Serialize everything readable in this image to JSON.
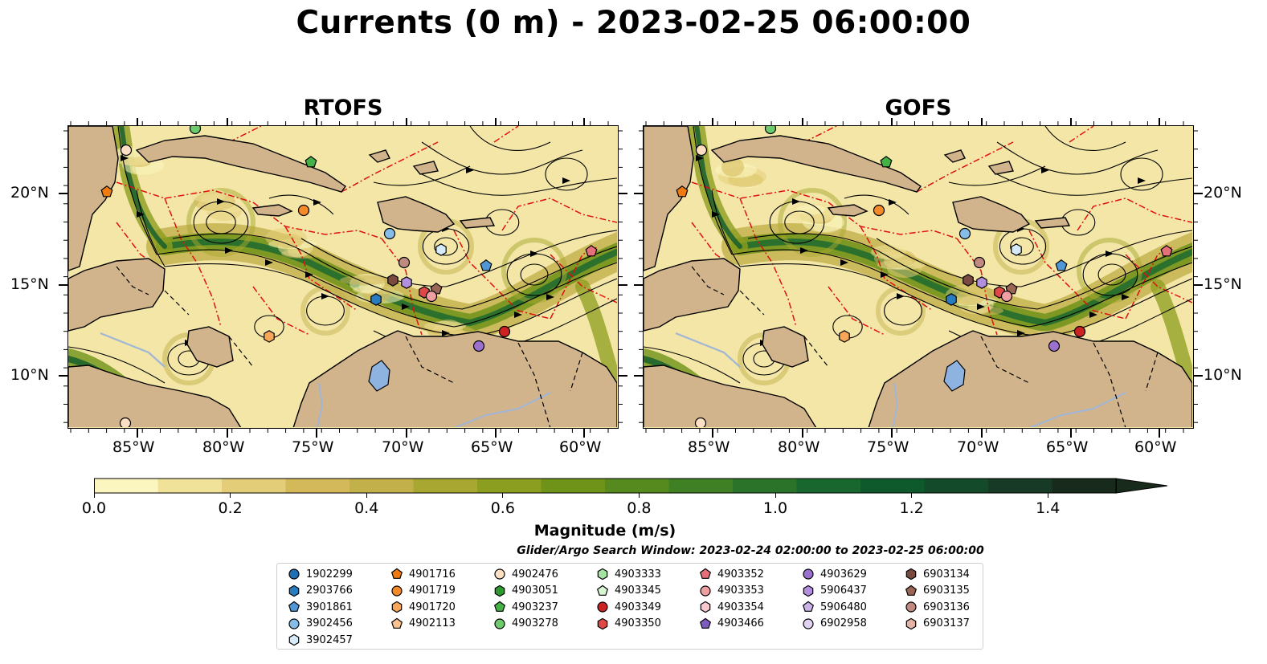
{
  "title": "Currents (0 m) - 2023-02-25 06:00:00",
  "panels": [
    {
      "title": "RTOFS"
    },
    {
      "title": "GOFS"
    }
  ],
  "lon_ticks": [
    "85°W",
    "80°W",
    "75°W",
    "70°W",
    "65°W",
    "60°W"
  ],
  "lat_ticks": [
    "20°N",
    "15°N",
    "10°N"
  ],
  "colorbar": {
    "label": "Magnitude (m/s)",
    "ticks": [
      "0.0",
      "0.2",
      "0.4",
      "0.6",
      "0.8",
      "1.0",
      "1.2",
      "1.4"
    ],
    "colors": [
      "#fbf5c0",
      "#f1e29a",
      "#e3cd78",
      "#d3b95a",
      "#c2b04a",
      "#a8a732",
      "#8c9e1f",
      "#6f9219",
      "#568a1f",
      "#3f8024",
      "#2a7328",
      "#17672e",
      "#0f5a2d",
      "#124a2a",
      "#163a25",
      "#182a1c"
    ]
  },
  "legend": {
    "title": "Glider/Argo Search Window: 2023-02-24 02:00:00 to 2023-02-25 06:00:00",
    "columns": [
      [
        {
          "id": "1902299",
          "marker": "circle",
          "color": "#1f6fb3"
        },
        {
          "id": "2903766",
          "marker": "hexagon",
          "color": "#2a7cc0"
        },
        {
          "id": "3901861",
          "marker": "pentagon",
          "color": "#4f97d6"
        },
        {
          "id": "3902456",
          "marker": "circle",
          "color": "#86bde8"
        },
        {
          "id": "3902457",
          "marker": "hexagon",
          "color": "#d6ebfa"
        }
      ],
      [
        {
          "id": "4901716",
          "marker": "pentagon",
          "color": "#ee7a10"
        },
        {
          "id": "4901719",
          "marker": "circle",
          "color": "#f58a2a"
        },
        {
          "id": "4901720",
          "marker": "hexagon",
          "color": "#f8a75a"
        },
        {
          "id": "4902113",
          "marker": "pentagon",
          "color": "#fbc48e"
        }
      ],
      [
        {
          "id": "4902476",
          "marker": "circle",
          "color": "#fde0c4"
        },
        {
          "id": "4903051",
          "marker": "hexagon",
          "color": "#2e9a2e"
        },
        {
          "id": "4903237",
          "marker": "pentagon",
          "color": "#44b244"
        },
        {
          "id": "4903278",
          "marker": "circle",
          "color": "#6ccb6c"
        }
      ],
      [
        {
          "id": "4903333",
          "marker": "hexagon",
          "color": "#a4e3a0"
        },
        {
          "id": "4903345",
          "marker": "pentagon",
          "color": "#d8f6d4"
        },
        {
          "id": "4903349",
          "marker": "circle",
          "color": "#cc2222"
        },
        {
          "id": "4903350",
          "marker": "hexagon",
          "color": "#e04848"
        }
      ],
      [
        {
          "id": "4903352",
          "marker": "pentagon",
          "color": "#e6707a"
        },
        {
          "id": "4903353",
          "marker": "circle",
          "color": "#f0a0a4"
        },
        {
          "id": "4903354",
          "marker": "hexagon",
          "color": "#f8c8cc"
        },
        {
          "id": "4903466",
          "marker": "pentagon",
          "color": "#7f5cc0"
        }
      ],
      [
        {
          "id": "4903629",
          "marker": "circle",
          "color": "#9b70cf"
        },
        {
          "id": "5906437",
          "marker": "hexagon",
          "color": "#b390dd"
        },
        {
          "id": "5906480",
          "marker": "pentagon",
          "color": "#cbb3ea"
        },
        {
          "id": "6902958",
          "marker": "circle",
          "color": "#e2d3f5"
        }
      ],
      [
        {
          "id": "6903134",
          "marker": "hexagon",
          "color": "#7a4a40"
        },
        {
          "id": "6903135",
          "marker": "pentagon",
          "color": "#9a6656"
        },
        {
          "id": "6903136",
          "marker": "circle",
          "color": "#c08a80"
        },
        {
          "id": "6903137",
          "marker": "hexagon",
          "color": "#e3b3a6"
        }
      ]
    ]
  },
  "colors": {
    "land": "#d2b48c",
    "eez_line": "#e01010",
    "lake": "#8fb3e0",
    "streamline": "#000000"
  }
}
